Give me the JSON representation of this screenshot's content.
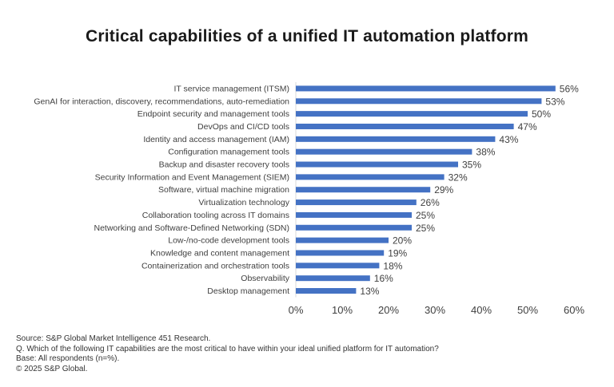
{
  "title": "Critical capabilities of a unified IT automation platform",
  "footer": {
    "source": "Source: S&P Global Market Intelligence 451 Research.",
    "question": "Q. Which of the following IT capabilities are the most critical to have within your ideal unified platform for IT automation?",
    "base": "Base: All respondents (n=%).",
    "copyright": "© 2025 S&P Global."
  },
  "colors": {
    "bar": "#4472C4",
    "axis": "#d9d9d9",
    "text": "#404040"
  },
  "chart_data": {
    "type": "bar",
    "orientation": "horizontal",
    "title": "Critical capabilities of a unified IT automation platform",
    "xlim": [
      0,
      60
    ],
    "x_ticks": [
      "0%",
      "10%",
      "20%",
      "30%",
      "40%",
      "50%",
      "60%"
    ],
    "grid": false,
    "categories": [
      "IT service management (ITSM)",
      "GenAI for interaction, discovery, recommendations, auto-remediation",
      "Endpoint security and management tools",
      "DevOps and CI/CD tools",
      "Identity and access management (IAM)",
      "Configuration management tools",
      "Backup and disaster recovery tools",
      "Security Information and Event Management (SIEM)",
      "Software, virtual machine migration",
      "Virtualization technology",
      "Collaboration tooling across IT domains",
      "Networking and Software-Defined Networking (SDN)",
      "Low-/no-code development tools",
      "Knowledge and content management",
      "Containerization and orchestration tools",
      "Observability",
      "Desktop management"
    ],
    "values": [
      56,
      53,
      50,
      47,
      43,
      38,
      35,
      32,
      29,
      26,
      25,
      25,
      20,
      19,
      18,
      16,
      13
    ],
    "data_labels": [
      "56%",
      "53%",
      "50%",
      "47%",
      "43%",
      "38%",
      "35%",
      "32%",
      "29%",
      "26%",
      "25%",
      "25%",
      "20%",
      "19%",
      "18%",
      "16%",
      "13%"
    ]
  }
}
